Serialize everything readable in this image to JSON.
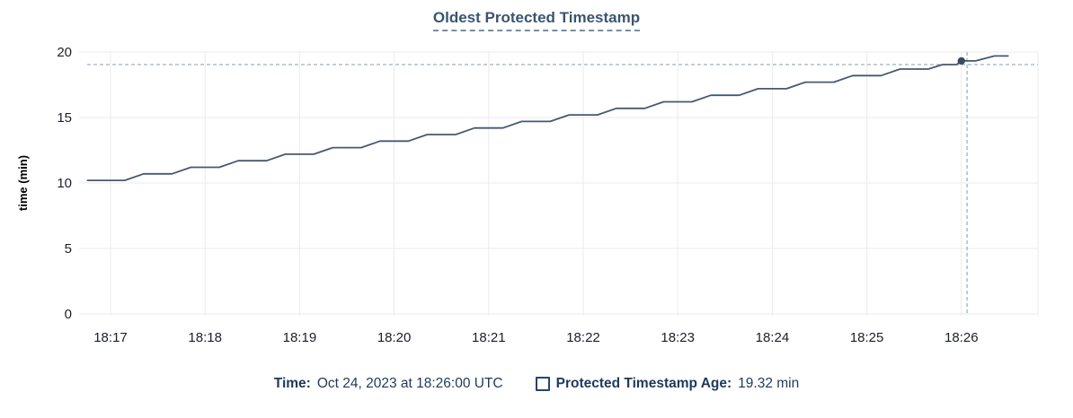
{
  "header": {
    "title": "Oldest Protected Timestamp"
  },
  "chart_data": {
    "type": "line",
    "title": "Oldest Protected Timestamp",
    "xlabel": "",
    "ylabel": "time (min)",
    "ylim": [
      0,
      20
    ],
    "yticks": [
      0,
      5,
      10,
      15,
      20
    ],
    "xticks": [
      "18:17",
      "18:18",
      "18:19",
      "18:20",
      "18:21",
      "18:22",
      "18:23",
      "18:24",
      "18:25",
      "18:26"
    ],
    "x_unit": "minutes after 18:17",
    "grid": true,
    "legend_position": "bottom",
    "series": [
      {
        "name": "Protected Timestamp Age",
        "points": [
          [
            -0.25,
            10.2
          ],
          [
            0.15,
            10.2
          ],
          [
            0.35,
            10.7
          ],
          [
            0.65,
            10.7
          ],
          [
            0.85,
            11.2
          ],
          [
            1.15,
            11.2
          ],
          [
            1.35,
            11.7
          ],
          [
            1.65,
            11.7
          ],
          [
            1.85,
            12.2
          ],
          [
            2.15,
            12.2
          ],
          [
            2.35,
            12.7
          ],
          [
            2.65,
            12.7
          ],
          [
            2.85,
            13.2
          ],
          [
            3.15,
            13.2
          ],
          [
            3.35,
            13.7
          ],
          [
            3.65,
            13.7
          ],
          [
            3.85,
            14.2
          ],
          [
            4.15,
            14.2
          ],
          [
            4.35,
            14.7
          ],
          [
            4.65,
            14.7
          ],
          [
            4.85,
            15.2
          ],
          [
            5.15,
            15.2
          ],
          [
            5.35,
            15.7
          ],
          [
            5.65,
            15.7
          ],
          [
            5.85,
            16.2
          ],
          [
            6.15,
            16.2
          ],
          [
            6.35,
            16.7
          ],
          [
            6.65,
            16.7
          ],
          [
            6.85,
            17.2
          ],
          [
            7.15,
            17.2
          ],
          [
            7.35,
            17.7
          ],
          [
            7.65,
            17.7
          ],
          [
            7.85,
            18.2
          ],
          [
            8.15,
            18.2
          ],
          [
            8.35,
            18.7
          ],
          [
            8.65,
            18.7
          ],
          [
            8.8,
            19.04
          ],
          [
            8.95,
            19.04
          ],
          [
            9.0,
            19.32
          ],
          [
            9.15,
            19.32
          ],
          [
            9.35,
            19.7
          ],
          [
            9.5,
            19.7
          ]
        ]
      }
    ],
    "hover": {
      "point": [
        9.0,
        19.32
      ],
      "crosshair_x": 9.06,
      "crosshair_y": 19.04,
      "time": "Oct 24, 2023 at 18:26:00 UTC",
      "value": "19.32 min"
    }
  },
  "tooltip": {
    "time_label": "Time:",
    "time_value": "Oct 24, 2023 at 18:26:00 UTC",
    "series_label": "Protected Timestamp Age:",
    "series_value": "19.32 min"
  },
  "colors": {
    "line": "#475872",
    "dot": "#394a63",
    "crosshair": "#9db2c2",
    "grid": "#ebebeb",
    "title": "#3b556f",
    "tick_text": "#1b1f27",
    "axis_title_text": "#000000",
    "legend_text": "#1d3a5e"
  }
}
